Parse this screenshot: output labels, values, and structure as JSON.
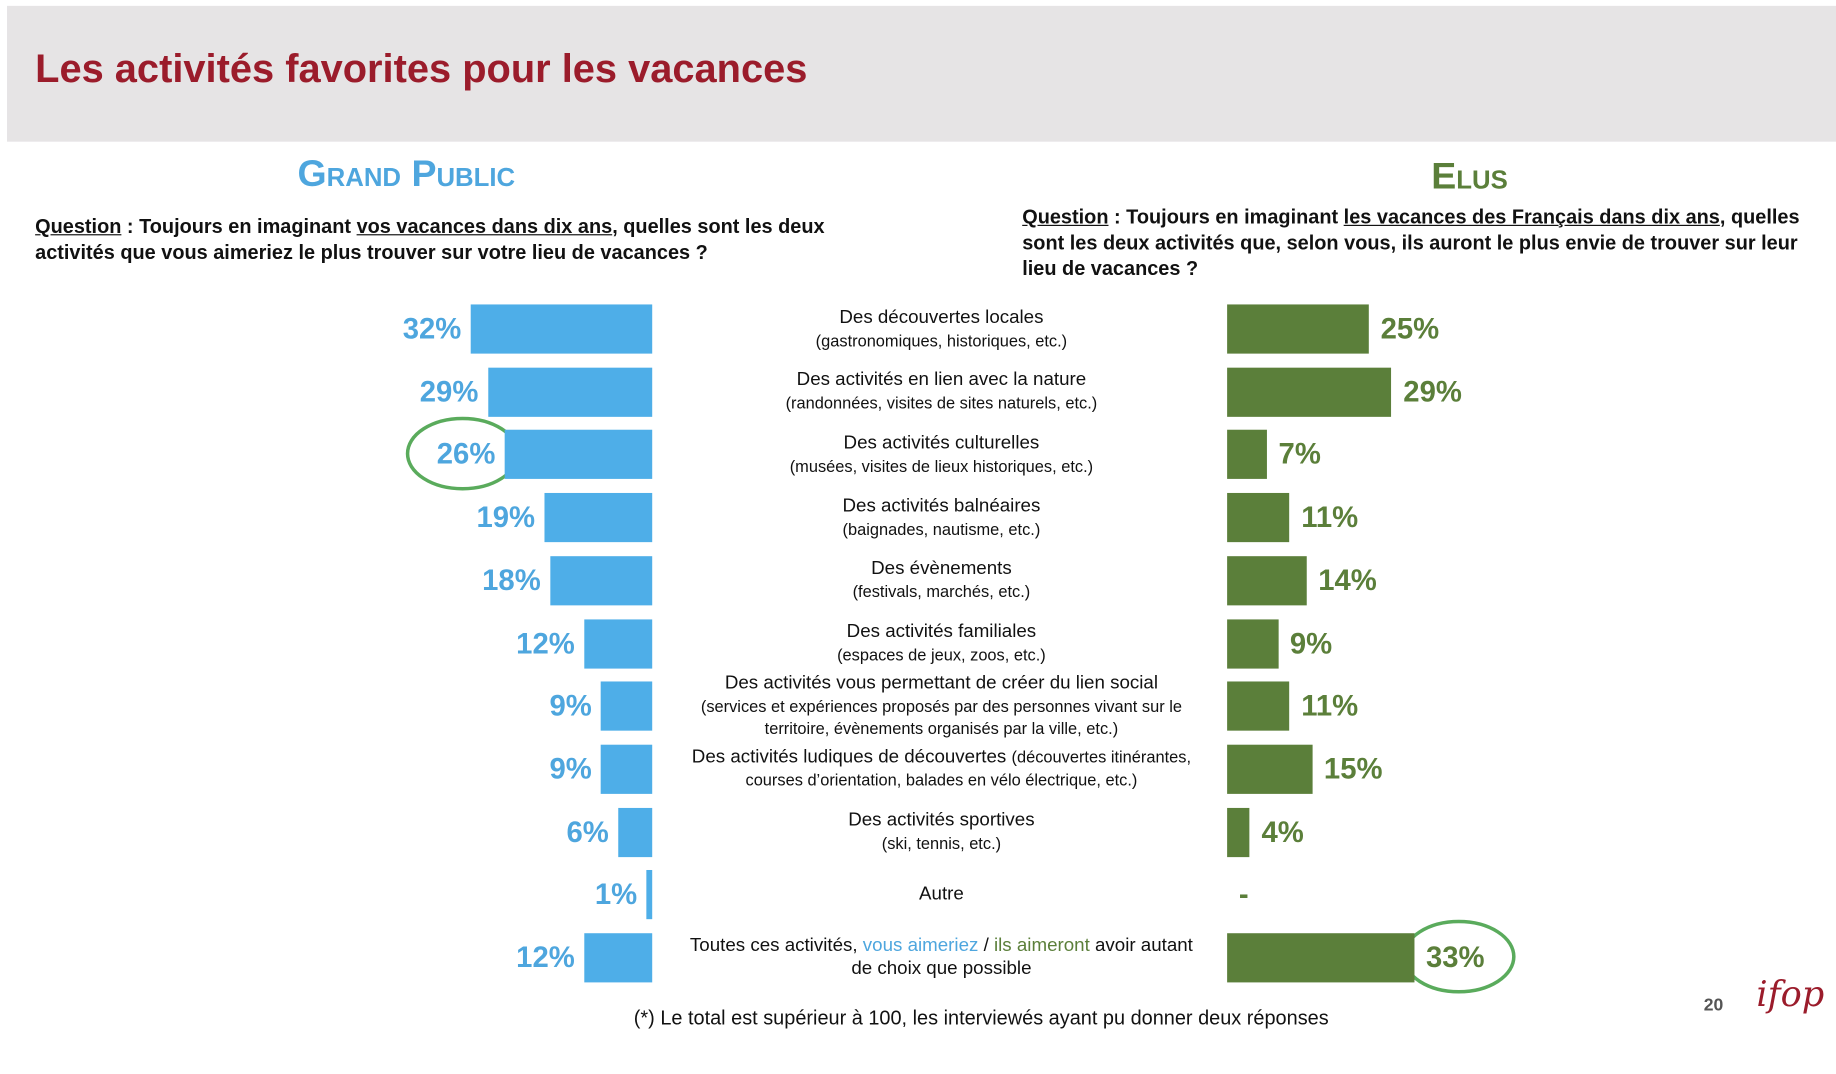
{
  "chart_data": {
    "type": "butterfly-bar",
    "title": "Les activités favorites pour les vacances",
    "categories": [
      "Des découvertes locales",
      "Des activités en lien avec la nature",
      "Des activités culturelles",
      "Des activités balnéaires",
      "Des évènements",
      "Des activités familiales",
      "Des activités vous permettant de créer du lien social",
      "Des activités ludiques de découvertes",
      "Des activités sportives",
      "Autre",
      [
        {
          "text": "Toutes ces activités, "
        },
        {
          "text": "vous aimeriez",
          "series": 0
        },
        {
          "text": " / "
        },
        {
          "text": "ils aimeront",
          "series": 1
        },
        {
          "text": " avoir autant de choix que possible"
        }
      ]
    ],
    "category_notes": [
      "(gastronomiques, historiques, etc.)",
      "(randonnées, visites de sites naturels, etc.)",
      "(musées, visites de lieux historiques, etc.)",
      "(baignades, nautisme, etc.)",
      "(festivals, marchés, etc.)",
      "(espaces de jeux, zoos, etc.)",
      "(services et expériences proposés par des personnes vivant sur le territoire, évènements organisés par la ville, etc.)",
      "(découvertes itinérantes, courses d’orientation, balades en vélo électrique, etc.)",
      "(ski, tennis, etc.)",
      null,
      null
    ],
    "series": [
      {
        "name": "Grand Public",
        "color": "#4eaee8",
        "label_color": "#4ea6de",
        "side": "left",
        "highlight": 2,
        "question": {
          "label": "Question",
          "before": " :  Toujours en imaginant ",
          "emphasis": "vos vacances dans dix ans",
          "after": ", quelles sont les deux activités que vous aimeriez le plus trouver sur votre lieu de vacances ?"
        },
        "values": [
          32,
          29,
          26,
          19,
          18,
          12,
          9,
          9,
          6,
          1,
          12
        ],
        "value_labels": [
          "32%",
          "29%",
          "26%",
          "19%",
          "18%",
          "12%",
          "9%",
          "9%",
          "6%",
          "1%",
          "12%"
        ]
      },
      {
        "name": "Elus",
        "color": "#5b7f3a",
        "label_color": "#5b7f3a",
        "side": "right",
        "highlight": 10,
        "question": {
          "label": "Question",
          "before": " :  Toujours en imaginant ",
          "emphasis": "les vacances des Français dans dix ans",
          "after": ", quelles sont les deux activités que, selon vous, ils auront le plus envie de trouver sur leur lieu de vacances ?"
        },
        "values": [
          25,
          29,
          7,
          11,
          14,
          9,
          11,
          15,
          4,
          null,
          33
        ],
        "value_labels": [
          "25%",
          "29%",
          "7%",
          "11%",
          "14%",
          "9%",
          "11%",
          "15%",
          "4%",
          "-",
          "33%"
        ]
      }
    ],
    "footnote": "(*) Le total est supérieur à 100, les interviewés ayant pu donner deux réponses",
    "page_number": "20",
    "logo": "ifop"
  }
}
